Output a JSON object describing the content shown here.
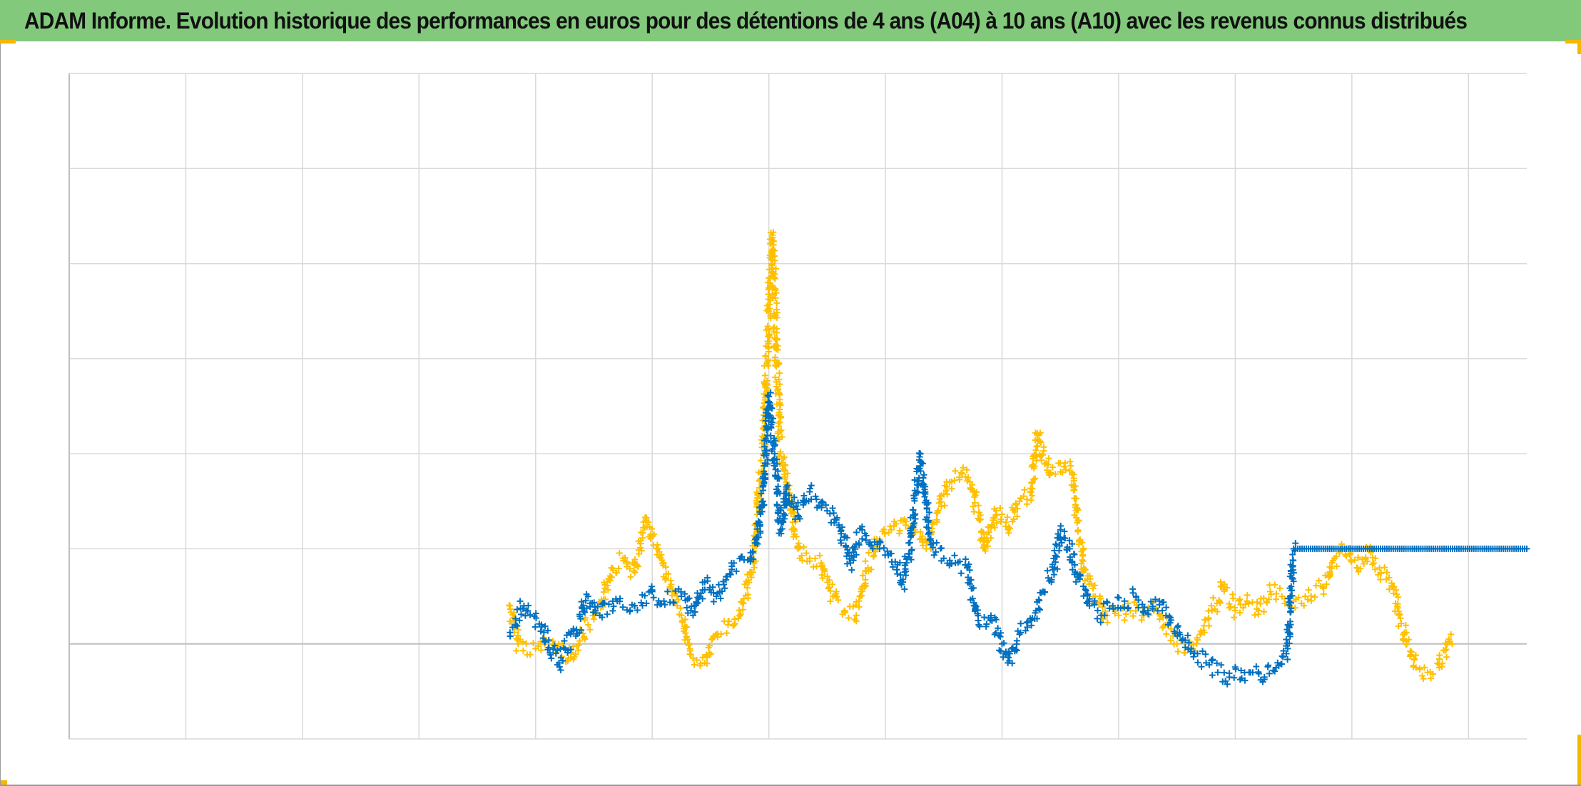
{
  "header": {
    "title": "ADAM Informe. Evolution historique des performances en euros pour des détentions de 4 ans (A04) à 10 ans (A10) avec les revenus connus distribués"
  },
  "colors": {
    "title_bg": "#82c97c",
    "corner_accent": "#f5b800",
    "series_a04": "#0070c0",
    "series_a10": "#ffc000",
    "grid": "#d9d9d9",
    "axis": "#bfbfbf"
  },
  "chart_data": {
    "type": "scatter",
    "marker": "plus",
    "title": "ADAM Informe. Evolution historique des performances en euros pour des détentions de 4 ans (A04) à 10 ans (A10) avec les revenus connus distribués",
    "xlabel": "",
    "ylabel": "",
    "grid": true,
    "legend": "none",
    "xlim": [
      0,
      12.5
    ],
    "ylim": [
      -1,
      6
    ],
    "x_gridlines": 13,
    "y_gridlines": [
      -1,
      0,
      1,
      2,
      3,
      4,
      5,
      6
    ],
    "tick_labels_shown": false,
    "series": [
      {
        "key": "a04",
        "color": "#0070c0",
        "points": [
          [
            3.78,
            0.12
          ],
          [
            3.9,
            0.4
          ],
          [
            4.05,
            0.2
          ],
          [
            4.2,
            -0.2
          ],
          [
            4.35,
            0.15
          ],
          [
            4.45,
            0.5
          ],
          [
            4.55,
            0.3
          ],
          [
            4.7,
            0.45
          ],
          [
            4.85,
            0.4
          ],
          [
            5.0,
            0.55
          ],
          [
            5.1,
            0.45
          ],
          [
            5.25,
            0.5
          ],
          [
            5.35,
            0.3
          ],
          [
            5.45,
            0.65
          ],
          [
            5.55,
            0.5
          ],
          [
            5.7,
            0.85
          ],
          [
            5.85,
            0.9
          ],
          [
            5.95,
            1.5
          ],
          [
            6.0,
            2.6
          ],
          [
            6.05,
            2.0
          ],
          [
            6.1,
            1.2
          ],
          [
            6.15,
            1.65
          ],
          [
            6.25,
            1.35
          ],
          [
            6.35,
            1.6
          ],
          [
            6.5,
            1.4
          ],
          [
            6.6,
            1.25
          ],
          [
            6.7,
            0.85
          ],
          [
            6.8,
            1.2
          ],
          [
            6.95,
            1.0
          ],
          [
            7.05,
            0.95
          ],
          [
            7.15,
            0.65
          ],
          [
            7.2,
            0.95
          ],
          [
            7.3,
            2.0
          ],
          [
            7.38,
            1.1
          ],
          [
            7.5,
            0.9
          ],
          [
            7.6,
            0.85
          ],
          [
            7.7,
            0.8
          ],
          [
            7.8,
            0.2
          ],
          [
            7.9,
            0.25
          ],
          [
            8.0,
            0.0
          ],
          [
            8.05,
            -0.2
          ],
          [
            8.15,
            0.1
          ],
          [
            8.25,
            0.25
          ],
          [
            8.35,
            0.55
          ],
          [
            8.45,
            0.8
          ],
          [
            8.5,
            1.2
          ],
          [
            8.58,
            1.0
          ],
          [
            8.65,
            0.7
          ],
          [
            8.75,
            0.4
          ],
          [
            8.85,
            0.3
          ],
          [
            8.95,
            0.4
          ],
          [
            9.05,
            0.45
          ],
          [
            9.15,
            0.5
          ],
          [
            9.25,
            0.35
          ],
          [
            9.35,
            0.45
          ],
          [
            9.45,
            0.25
          ],
          [
            9.55,
            0.05
          ],
          [
            9.65,
            -0.1
          ],
          [
            9.75,
            -0.2
          ],
          [
            9.85,
            -0.3
          ],
          [
            9.95,
            -0.35
          ],
          [
            10.05,
            -0.28
          ],
          [
            10.15,
            -0.3
          ],
          [
            10.25,
            -0.35
          ],
          [
            10.35,
            -0.25
          ],
          [
            10.45,
            -0.05
          ],
          [
            10.5,
            1.0
          ],
          [
            10.7,
            1.0
          ],
          [
            10.9,
            1.0
          ],
          [
            11.1,
            1.0
          ],
          [
            11.3,
            1.0
          ],
          [
            11.5,
            1.0
          ],
          [
            11.7,
            1.0
          ],
          [
            11.9,
            1.0
          ],
          [
            12.1,
            1.0
          ],
          [
            12.3,
            1.0
          ],
          [
            12.5,
            1.0
          ]
        ]
      },
      {
        "key": "a10",
        "color": "#ffc000",
        "points": [
          [
            3.78,
            0.4
          ],
          [
            3.85,
            0.0
          ],
          [
            4.0,
            -0.05
          ],
          [
            4.15,
            0.0
          ],
          [
            4.3,
            -0.15
          ],
          [
            4.45,
            0.2
          ],
          [
            4.55,
            0.3
          ],
          [
            4.65,
            0.8
          ],
          [
            4.75,
            0.9
          ],
          [
            4.85,
            0.75
          ],
          [
            4.95,
            1.3
          ],
          [
            5.05,
            1.0
          ],
          [
            5.15,
            0.6
          ],
          [
            5.25,
            0.3
          ],
          [
            5.35,
            -0.15
          ],
          [
            5.45,
            -0.2
          ],
          [
            5.55,
            0.1
          ],
          [
            5.65,
            0.2
          ],
          [
            5.75,
            0.3
          ],
          [
            5.85,
            0.7
          ],
          [
            5.95,
            2.0
          ],
          [
            6.0,
            3.5
          ],
          [
            6.03,
            4.3
          ],
          [
            6.06,
            3.2
          ],
          [
            6.1,
            2.0
          ],
          [
            6.15,
            1.7
          ],
          [
            6.25,
            1.0
          ],
          [
            6.35,
            0.9
          ],
          [
            6.45,
            0.85
          ],
          [
            6.55,
            0.5
          ],
          [
            6.65,
            0.35
          ],
          [
            6.75,
            0.3
          ],
          [
            6.85,
            0.8
          ],
          [
            6.95,
            1.1
          ],
          [
            7.05,
            1.2
          ],
          [
            7.15,
            1.3
          ],
          [
            7.25,
            1.2
          ],
          [
            7.35,
            1.0
          ],
          [
            7.45,
            1.4
          ],
          [
            7.55,
            1.7
          ],
          [
            7.65,
            1.8
          ],
          [
            7.75,
            1.6
          ],
          [
            7.85,
            1.0
          ],
          [
            7.95,
            1.4
          ],
          [
            8.05,
            1.2
          ],
          [
            8.15,
            1.5
          ],
          [
            8.25,
            1.6
          ],
          [
            8.3,
            2.2
          ],
          [
            8.4,
            1.8
          ],
          [
            8.5,
            1.9
          ],
          [
            8.6,
            1.8
          ],
          [
            8.7,
            0.8
          ],
          [
            8.8,
            0.5
          ],
          [
            8.9,
            0.3
          ],
          [
            9.0,
            0.3
          ],
          [
            9.1,
            0.35
          ],
          [
            9.2,
            0.3
          ],
          [
            9.3,
            0.35
          ],
          [
            9.4,
            0.2
          ],
          [
            9.5,
            0.0
          ],
          [
            9.6,
            -0.05
          ],
          [
            9.7,
            0.1
          ],
          [
            9.8,
            0.35
          ],
          [
            9.9,
            0.6
          ],
          [
            10.0,
            0.35
          ],
          [
            10.1,
            0.45
          ],
          [
            10.2,
            0.35
          ],
          [
            10.3,
            0.55
          ],
          [
            10.4,
            0.5
          ],
          [
            10.5,
            0.45
          ],
          [
            10.6,
            0.5
          ],
          [
            10.75,
            0.6
          ],
          [
            10.85,
            0.9
          ],
          [
            10.95,
            1.0
          ],
          [
            11.05,
            0.8
          ],
          [
            11.15,
            1.0
          ],
          [
            11.25,
            0.75
          ],
          [
            11.35,
            0.6
          ],
          [
            11.45,
            0.1
          ],
          [
            11.55,
            -0.25
          ],
          [
            11.65,
            -0.3
          ],
          [
            11.75,
            -0.25
          ],
          [
            11.85,
            0.1
          ]
        ]
      }
    ]
  }
}
